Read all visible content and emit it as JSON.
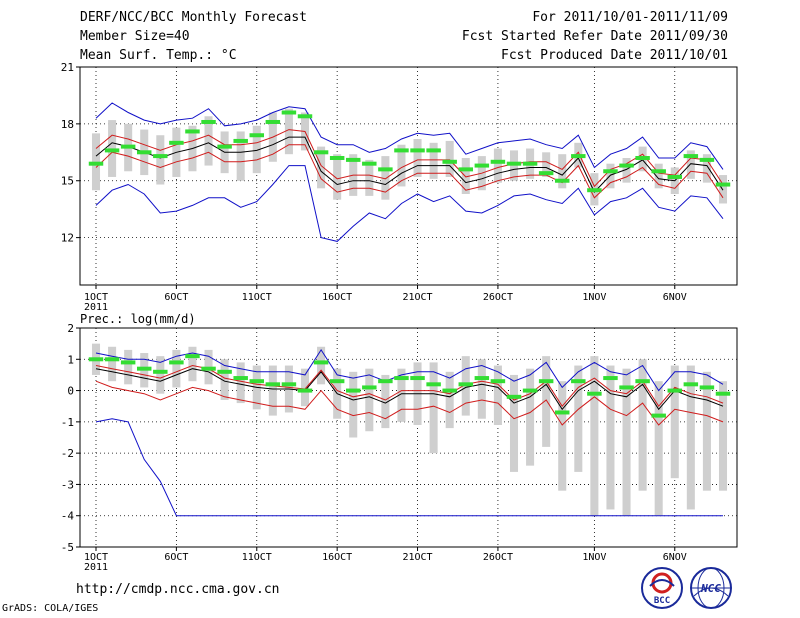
{
  "header": {
    "title": "DERF/NCC/BCC Monthly Forecast",
    "member_size": "Member Size=40",
    "variable": "Mean Surf. Temp.: °C",
    "period": "For 2011/10/01-2011/11/09",
    "fcst_started": "Fcst Started Refer Date 2011/09/30",
    "fcst_produced": "Fcst Produced Date 2011/10/01"
  },
  "footer": {
    "url": "http://cmdp.ncc.cma.gov.cn",
    "grads": "GrADS: COLA/IGES",
    "logo_bcc": "BCC",
    "logo_ncc": "NCC"
  },
  "colors": {
    "ensemble_mean": "#000000",
    "ensemble_spread": "#d01c1c",
    "ensemble_extreme": "#1010c8",
    "box": "#cfcfcf",
    "climatology": "#33dd33"
  },
  "chart_data": [
    {
      "type": "line",
      "title": "Mean Surf. Temp.: °C",
      "x_tick_labels": [
        "1OCT\n2011",
        "6OCT",
        "11OCT",
        "16OCT",
        "21OCT",
        "26OCT",
        "1NOV",
        "6NOV"
      ],
      "x_tick_days": [
        0,
        5,
        10,
        15,
        20,
        25,
        31,
        36
      ],
      "ylim": [
        9.5,
        21
      ],
      "yticks": [
        12,
        15,
        18,
        21
      ],
      "days": [
        0,
        1,
        2,
        3,
        4,
        5,
        6,
        7,
        8,
        9,
        10,
        11,
        12,
        13,
        14,
        15,
        16,
        17,
        18,
        19,
        20,
        21,
        22,
        23,
        24,
        25,
        26,
        27,
        28,
        29,
        30,
        31,
        32,
        33,
        34,
        35,
        36,
        37,
        38,
        39
      ],
      "series": [
        {
          "name": "mean",
          "values": [
            16.3,
            17.0,
            16.8,
            16.5,
            16.2,
            16.5,
            16.7,
            17.0,
            16.5,
            16.5,
            16.6,
            16.9,
            17.3,
            17.3,
            15.5,
            14.8,
            15.0,
            15.0,
            14.8,
            15.4,
            15.8,
            15.8,
            15.8,
            14.9,
            15.1,
            15.4,
            15.6,
            15.7,
            15.7,
            15.3,
            16.2,
            14.4,
            15.3,
            15.6,
            16.1,
            15.1,
            15.0,
            15.9,
            15.8,
            14.5
          ]
        },
        {
          "name": "upper-spread",
          "values": [
            16.7,
            17.4,
            17.2,
            16.9,
            16.6,
            16.9,
            17.1,
            17.4,
            16.9,
            16.9,
            17.0,
            17.3,
            17.7,
            17.6,
            15.8,
            15.1,
            15.3,
            15.3,
            15.1,
            15.7,
            16.1,
            16.1,
            16.1,
            15.2,
            15.4,
            15.7,
            15.9,
            16.0,
            16.0,
            15.6,
            16.5,
            14.7,
            15.6,
            15.9,
            16.4,
            15.4,
            15.3,
            16.2,
            16.1,
            14.8
          ]
        },
        {
          "name": "lower-spread",
          "values": [
            15.7,
            16.5,
            16.3,
            16.0,
            15.7,
            16.0,
            16.2,
            16.5,
            16.0,
            16.0,
            16.1,
            16.4,
            16.9,
            16.9,
            15.1,
            14.4,
            14.6,
            14.6,
            14.4,
            15.0,
            15.4,
            15.4,
            15.4,
            14.5,
            14.7,
            15.0,
            15.2,
            15.3,
            15.3,
            14.9,
            15.8,
            14.1,
            14.9,
            15.2,
            15.7,
            14.8,
            14.6,
            15.5,
            15.4,
            14.1
          ]
        },
        {
          "name": "maximum",
          "values": [
            18.3,
            19.1,
            18.6,
            18.2,
            18.0,
            18.2,
            18.3,
            18.8,
            17.9,
            18.0,
            18.2,
            18.6,
            18.9,
            18.8,
            17.3,
            16.9,
            16.9,
            16.5,
            16.7,
            17.2,
            17.5,
            17.4,
            17.5,
            16.4,
            16.7,
            17.0,
            17.1,
            17.2,
            16.9,
            16.7,
            17.4,
            15.7,
            16.4,
            16.7,
            17.3,
            16.2,
            16.2,
            17.0,
            16.8,
            15.6
          ]
        },
        {
          "name": "minimum",
          "values": [
            13.7,
            14.5,
            14.8,
            14.3,
            13.3,
            13.4,
            13.7,
            14.1,
            14.1,
            13.6,
            13.9,
            14.8,
            15.8,
            15.8,
            12.0,
            11.8,
            12.6,
            13.3,
            13.0,
            13.8,
            14.3,
            13.9,
            14.2,
            13.4,
            13.3,
            13.7,
            14.2,
            14.3,
            14.0,
            13.8,
            14.6,
            13.2,
            13.9,
            14.1,
            14.6,
            13.6,
            13.4,
            14.2,
            14.1,
            13.0
          ]
        }
      ],
      "box_bottom": [
        14.5,
        15.2,
        15.5,
        15.3,
        14.8,
        15.2,
        15.5,
        15.8,
        15.4,
        15.0,
        15.4,
        16.0,
        16.4,
        16.6,
        14.6,
        14.0,
        14.2,
        14.2,
        14.0,
        14.7,
        15.2,
        15.1,
        15.2,
        14.3,
        14.5,
        14.9,
        15.0,
        15.1,
        15.2,
        14.6,
        15.7,
        13.7,
        14.6,
        14.9,
        15.5,
        14.6,
        14.3,
        15.1,
        14.9,
        13.8
      ],
      "box_top": [
        17.5,
        18.2,
        18.0,
        17.7,
        17.4,
        17.8,
        17.9,
        18.4,
        17.6,
        17.6,
        17.9,
        18.6,
        18.8,
        18.6,
        16.8,
        16.4,
        16.4,
        16.1,
        16.3,
        16.9,
        17.2,
        17.0,
        17.1,
        16.2,
        16.3,
        16.7,
        16.6,
        16.7,
        16.5,
        16.4,
        17.0,
        15.4,
        15.9,
        16.2,
        16.8,
        15.9,
        15.7,
        16.6,
        16.4,
        15.3
      ],
      "climatology": [
        15.9,
        16.6,
        16.8,
        16.5,
        16.3,
        17.0,
        17.6,
        18.1,
        16.8,
        17.1,
        17.4,
        18.1,
        18.6,
        18.4,
        16.5,
        16.2,
        16.1,
        15.9,
        15.6,
        16.6,
        16.6,
        16.6,
        16.0,
        15.6,
        15.8,
        16.0,
        15.9,
        15.9,
        15.4,
        15.0,
        16.3,
        14.5,
        15.5,
        15.8,
        16.2,
        15.5,
        15.2,
        16.3,
        16.1,
        14.8
      ]
    },
    {
      "type": "line",
      "title": "Prec.: log(mm/d)",
      "x_tick_labels": [
        "1OCT\n2011",
        "6OCT",
        "11OCT",
        "16OCT",
        "21OCT",
        "26OCT",
        "1NOV",
        "6NOV"
      ],
      "x_tick_days": [
        0,
        5,
        10,
        15,
        20,
        25,
        31,
        36
      ],
      "ylim": [
        -5,
        2
      ],
      "yticks": [
        -5,
        -4,
        -3,
        -2,
        -1,
        0,
        1,
        2
      ],
      "days": [
        0,
        1,
        2,
        3,
        4,
        5,
        6,
        7,
        8,
        9,
        10,
        11,
        12,
        13,
        14,
        15,
        16,
        17,
        18,
        19,
        20,
        21,
        22,
        23,
        24,
        25,
        26,
        27,
        28,
        29,
        30,
        31,
        32,
        33,
        34,
        35,
        36,
        37,
        38,
        39
      ],
      "series": [
        {
          "name": "mean",
          "values": [
            0.7,
            0.6,
            0.5,
            0.4,
            0.3,
            0.5,
            0.7,
            0.6,
            0.3,
            0.2,
            0.1,
            0.05,
            0.05,
            0.0,
            0.6,
            -0.1,
            -0.3,
            -0.2,
            -0.4,
            -0.1,
            -0.1,
            -0.1,
            -0.2,
            0.1,
            0.2,
            0.1,
            -0.4,
            -0.2,
            0.2,
            -0.6,
            0.0,
            0.3,
            -0.1,
            -0.2,
            0.2,
            -0.6,
            0.0,
            -0.2,
            -0.3,
            -0.5
          ]
        },
        {
          "name": "upper-spread",
          "values": [
            0.8,
            0.7,
            0.6,
            0.5,
            0.4,
            0.6,
            0.8,
            0.7,
            0.4,
            0.3,
            0.2,
            0.15,
            0.1,
            0.05,
            0.65,
            0.0,
            -0.2,
            -0.1,
            -0.3,
            0.0,
            0.0,
            0.0,
            -0.1,
            0.2,
            0.3,
            0.2,
            -0.3,
            -0.1,
            0.3,
            -0.5,
            0.1,
            0.4,
            0.0,
            -0.1,
            0.3,
            -0.5,
            0.1,
            -0.1,
            -0.2,
            -0.4
          ]
        },
        {
          "name": "lower-spread",
          "values": [
            0.3,
            0.1,
            0.0,
            -0.1,
            -0.3,
            -0.1,
            0.1,
            0.0,
            -0.2,
            -0.3,
            -0.4,
            -0.5,
            -0.5,
            -0.6,
            0.0,
            -0.6,
            -0.8,
            -0.7,
            -0.9,
            -0.6,
            -0.6,
            -0.5,
            -0.7,
            -0.4,
            -0.3,
            -0.4,
            -0.9,
            -0.7,
            -0.3,
            -1.1,
            -0.6,
            -0.2,
            -0.6,
            -0.8,
            -0.4,
            -1.1,
            -0.6,
            -0.7,
            -0.8,
            -1.0
          ]
        },
        {
          "name": "maximum",
          "values": [
            1.2,
            1.1,
            1.0,
            1.0,
            0.9,
            1.1,
            1.2,
            1.1,
            0.8,
            0.7,
            0.6,
            0.6,
            0.6,
            0.5,
            1.3,
            0.5,
            0.4,
            0.5,
            0.3,
            0.5,
            0.6,
            0.6,
            0.4,
            0.7,
            0.8,
            0.6,
            0.3,
            0.5,
            0.9,
            0.1,
            0.6,
            0.9,
            0.6,
            0.5,
            0.8,
            0.0,
            0.6,
            0.6,
            0.5,
            0.2
          ]
        },
        {
          "name": "minimum",
          "values": [
            -1.0,
            -0.9,
            -1.0,
            -2.2,
            -2.9,
            -4.0,
            -4.0,
            -4.0,
            -4.0,
            -4.0,
            -4.0,
            -4.0,
            -4.0,
            -4.0,
            -4.0,
            -4.0,
            -4.0,
            -4.0,
            -4.0,
            -4.0,
            -4.0,
            -4.0,
            -4.0,
            -4.0,
            -4.0,
            -4.0,
            -4.0,
            -4.0,
            -4.0,
            -4.0,
            -4.0,
            -4.0,
            -4.0,
            -4.0,
            -4.0,
            -4.0,
            -4.0,
            -4.0,
            -4.0,
            -4.0
          ]
        }
      ],
      "box_bottom": [
        0.5,
        0.3,
        0.2,
        0.1,
        -0.1,
        0.1,
        0.3,
        0.2,
        -0.3,
        -0.4,
        -0.6,
        -0.8,
        -0.7,
        -0.5,
        0.2,
        -0.9,
        -1.5,
        -1.3,
        -1.2,
        -1.0,
        -1.1,
        -2.0,
        -1.2,
        -0.8,
        -0.9,
        -1.1,
        -2.6,
        -2.4,
        -1.8,
        -3.2,
        -2.6,
        -4.0,
        -3.8,
        -4.0,
        -3.2,
        -4.0,
        -2.8,
        -3.8,
        -3.2,
        -3.2
      ],
      "box_top": [
        1.5,
        1.4,
        1.3,
        1.2,
        1.1,
        1.3,
        1.4,
        1.3,
        1.0,
        0.9,
        0.8,
        0.8,
        0.8,
        0.7,
        1.4,
        0.7,
        0.6,
        0.7,
        0.5,
        0.7,
        0.9,
        0.9,
        0.6,
        1.1,
        1.0,
        0.8,
        0.5,
        0.7,
        1.1,
        0.3,
        0.8,
        1.1,
        0.8,
        0.7,
        1.0,
        0.3,
        0.8,
        0.8,
        0.6,
        0.3
      ],
      "climatology": [
        1.0,
        1.0,
        0.9,
        0.7,
        0.6,
        0.9,
        1.1,
        0.7,
        0.6,
        0.4,
        0.3,
        0.2,
        0.2,
        0.0,
        0.9,
        0.3,
        0.0,
        0.1,
        0.3,
        0.4,
        0.4,
        0.2,
        0.0,
        0.2,
        0.4,
        0.3,
        -0.2,
        0.0,
        0.3,
        -0.7,
        0.3,
        -0.1,
        0.4,
        0.1,
        0.3,
        -0.8,
        0.0,
        0.2,
        0.1,
        -0.1
      ]
    }
  ]
}
